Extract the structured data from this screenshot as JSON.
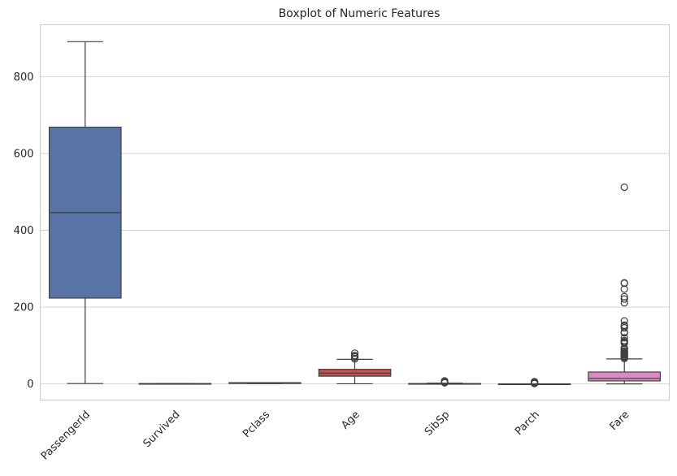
{
  "chart_data": {
    "type": "boxplot",
    "title": "Boxplot of Numeric Features",
    "xlabel": "",
    "ylabel": "",
    "ylim": [
      -42,
      935
    ],
    "yticks": [
      0,
      200,
      400,
      600,
      800
    ],
    "grid": "horizontal",
    "x_tick_rotation": 45,
    "categories": [
      "PassengerId",
      "Survived",
      "Pclass",
      "Age",
      "SibSp",
      "Parch",
      "Fare"
    ],
    "series": [
      {
        "category": "PassengerId",
        "color": "#5874a6",
        "whisker_low": 1,
        "q1": 223.5,
        "median": 446,
        "q3": 668.5,
        "whisker_high": 891,
        "outliers": []
      },
      {
        "category": "Survived",
        "color": "#e1884a",
        "whisker_low": 0,
        "q1": 0,
        "median": 0,
        "q3": 1,
        "whisker_high": 1,
        "outliers": []
      },
      {
        "category": "Pclass",
        "color": "#5e9e5e",
        "whisker_low": 1,
        "q1": 2,
        "median": 3,
        "q3": 3,
        "whisker_high": 3,
        "outliers": []
      },
      {
        "category": "Age",
        "color": "#c44e52",
        "whisker_low": 0.42,
        "q1": 20.1,
        "median": 28,
        "q3": 38,
        "whisker_high": 64,
        "outliers": [
          65,
          66,
          70,
          70.5,
          71,
          74,
          80
        ]
      },
      {
        "category": "SibSp",
        "color": "#8172b3",
        "whisker_low": 0,
        "q1": 0,
        "median": 0,
        "q3": 1,
        "whisker_high": 2,
        "outliers": [
          3,
          4,
          5,
          8
        ]
      },
      {
        "category": "Parch",
        "color": "#937860",
        "whisker_low": 0,
        "q1": 0,
        "median": 0,
        "q3": 0,
        "whisker_high": 0,
        "outliers": [
          1,
          2,
          3,
          4,
          5,
          6
        ]
      },
      {
        "category": "Fare",
        "color": "#da8bc3",
        "whisker_low": 0,
        "q1": 7.91,
        "median": 14.45,
        "q3": 31,
        "whisker_high": 65,
        "outliers": [
          66,
          69,
          71,
          73,
          76,
          78,
          80,
          82,
          83,
          86,
          90,
          91,
          93,
          106,
          108,
          110,
          113,
          120,
          133,
          135,
          146,
          151,
          153,
          164,
          211,
          221,
          227,
          247,
          262,
          263,
          512
        ]
      }
    ],
    "colors": {
      "grid": "#d3d3d3",
      "axes_edge": "#cccccc",
      "line": "#3f3f3f",
      "text": "#262626"
    }
  }
}
